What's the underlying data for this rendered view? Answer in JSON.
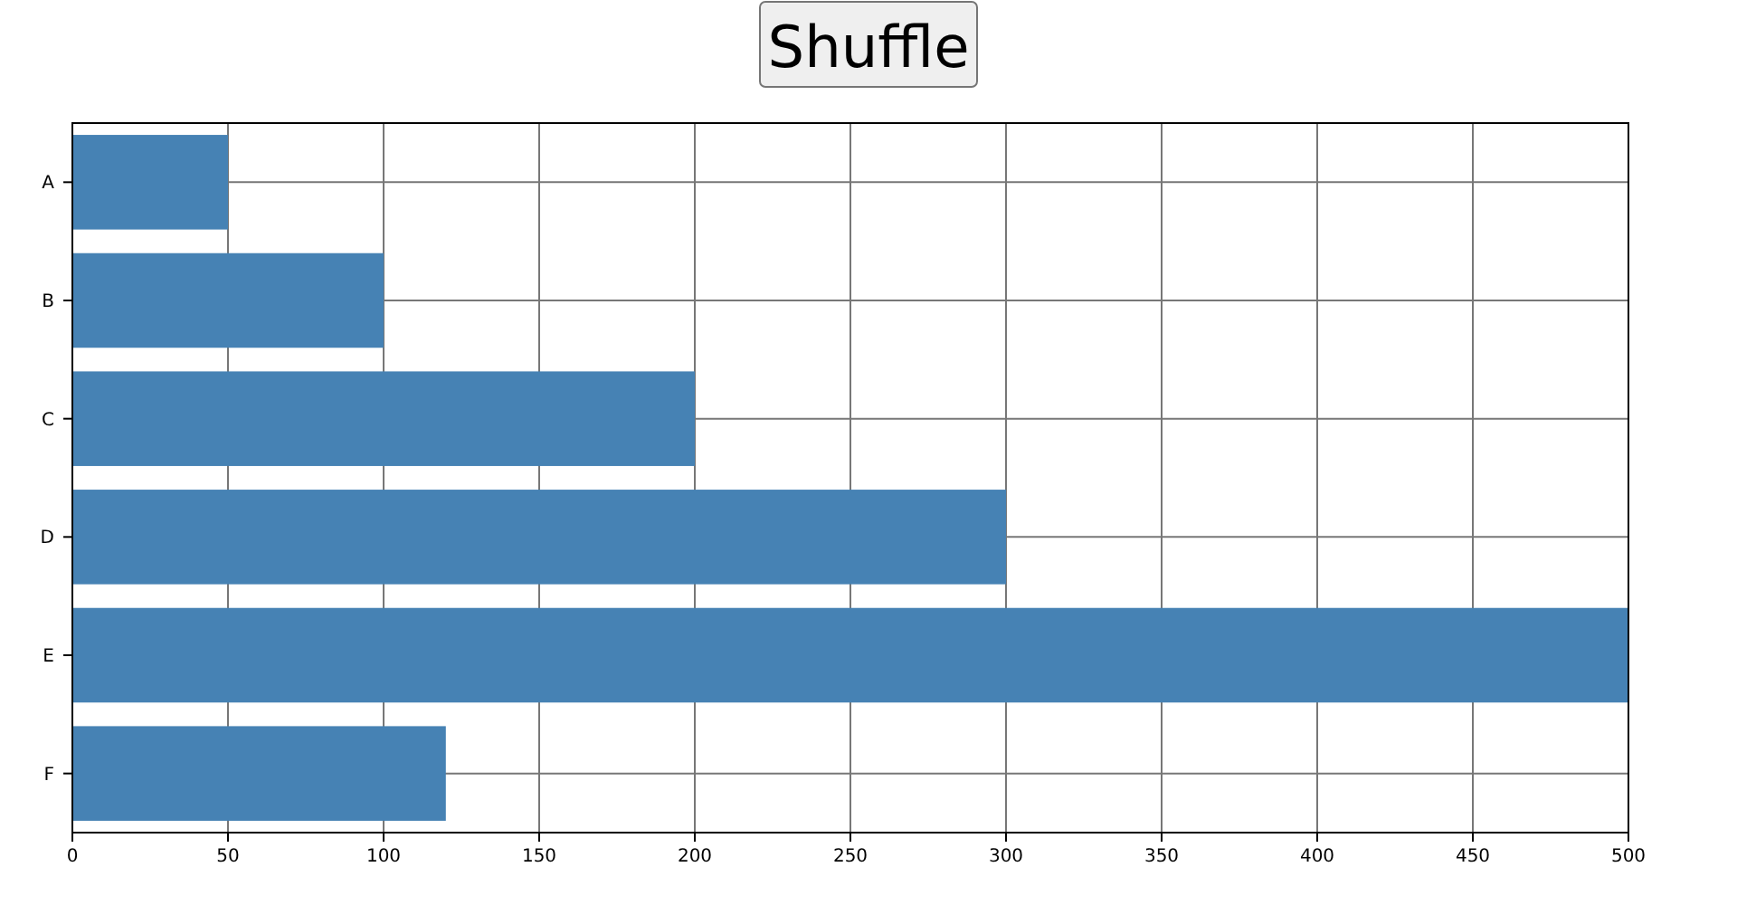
{
  "chart_data": {
    "type": "bar",
    "orientation": "horizontal",
    "categories": [
      "A",
      "B",
      "C",
      "D",
      "E",
      "F"
    ],
    "values": [
      50,
      100,
      200,
      300,
      500,
      120
    ],
    "color": "#4682b4",
    "xlim": [
      0,
      500
    ],
    "xticks": [
      0,
      50,
      100,
      150,
      200,
      250,
      300,
      350,
      400,
      450,
      500
    ],
    "grid": true,
    "annotations": [
      "Shuffle"
    ]
  }
}
